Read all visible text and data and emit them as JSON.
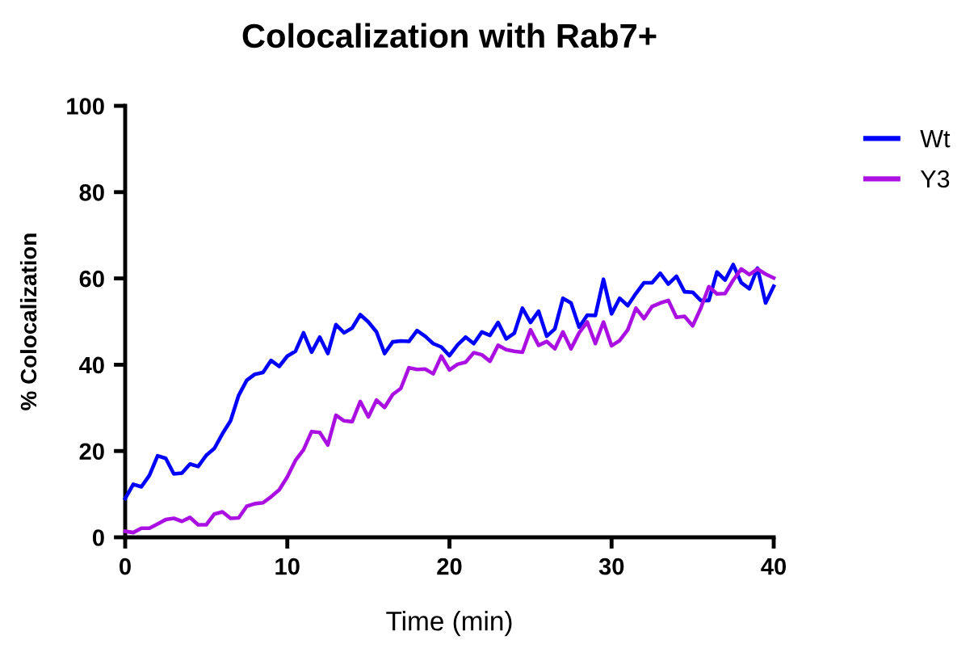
{
  "chart_data": {
    "type": "line",
    "title": "Colocalization with Rab7+",
    "xlabel": "Time (min)",
    "ylabel": "% Colocalization",
    "x": [
      0,
      0.5,
      1,
      1.5,
      2,
      2.5,
      3,
      3.5,
      4,
      4.5,
      5,
      5.5,
      6,
      6.5,
      7,
      7.5,
      8,
      8.5,
      9,
      9.5,
      10,
      10.5,
      11,
      11.5,
      12,
      12.5,
      13,
      13.5,
      14,
      14.5,
      15,
      15.5,
      16,
      16.5,
      17,
      17.5,
      18,
      18.5,
      19,
      19.5,
      20,
      20.5,
      21,
      21.5,
      22,
      22.5,
      23,
      23.5,
      24,
      24.5,
      25,
      25.5,
      26,
      26.5,
      27,
      27.5,
      28,
      28.5,
      29,
      29.5,
      30,
      30.5,
      31,
      31.5,
      32,
      32.5,
      33,
      33.5,
      34,
      34.5,
      35,
      35.5,
      36,
      36.5,
      37,
      37.5,
      38,
      38.5,
      39,
      39.5,
      40
    ],
    "series": [
      {
        "name": "Wt",
        "color": "#0000ff",
        "values": [
          9.0,
          12.3,
          11.7,
          14.4,
          18.9,
          18.3,
          14.7,
          14.9,
          17.0,
          16.4,
          19.0,
          20.6,
          24.0,
          27.0,
          32.9,
          36.4,
          37.8,
          38.2,
          41.0,
          39.6,
          42.0,
          43.1,
          47.4,
          42.9,
          46.4,
          42.6,
          49.3,
          47.4,
          48.5,
          51.6,
          49.9,
          47.6,
          42.6,
          45.3,
          45.5,
          45.4,
          47.9,
          46.6,
          44.9,
          44.1,
          42.1,
          44.6,
          46.4,
          44.9,
          47.6,
          46.8,
          49.8,
          46.0,
          47.3,
          53.1,
          49.8,
          52.4,
          46.6,
          48.3,
          55.4,
          54.3,
          48.7,
          51.5,
          51.4,
          59.8,
          51.8,
          55.4,
          53.7,
          56.5,
          59.0,
          59.0,
          61.2,
          58.7,
          60.5,
          56.9,
          56.8,
          54.9,
          54.9,
          61.5,
          59.6,
          63.2,
          59.0,
          57.6,
          62.4,
          54.3,
          58.2
        ]
      },
      {
        "name": "Y3",
        "color": "#ab10e2",
        "values": [
          1.4,
          1.1,
          2.1,
          2.1,
          3.1,
          4.1,
          4.4,
          3.7,
          4.6,
          2.9,
          2.9,
          5.4,
          5.9,
          4.4,
          4.5,
          7.2,
          7.8,
          8.0,
          9.4,
          11.0,
          14.0,
          17.8,
          20.3,
          24.5,
          24.3,
          21.4,
          28.3,
          27.0,
          26.8,
          31.5,
          27.9,
          31.8,
          30.1,
          33.1,
          34.5,
          39.3,
          38.9,
          39.0,
          37.9,
          42.0,
          38.8,
          40.1,
          40.6,
          42.8,
          42.3,
          40.8,
          44.5,
          43.5,
          43.1,
          42.9,
          48.1,
          44.5,
          45.4,
          43.7,
          47.6,
          43.7,
          47.4,
          49.9,
          44.9,
          49.9,
          44.4,
          45.6,
          48.1,
          53.1,
          50.7,
          53.5,
          54.3,
          54.9,
          51.0,
          51.2,
          49.0,
          53.1,
          58.1,
          56.4,
          56.5,
          59.6,
          62.2,
          60.9,
          62.2,
          61.0,
          60.1
        ]
      }
    ],
    "xlim": [
      0,
      40
    ],
    "xticks": [
      0,
      10,
      20,
      30,
      40
    ],
    "ylim": [
      0,
      100
    ],
    "yticks": [
      0,
      20,
      40,
      60,
      80,
      100
    ],
    "grid": false,
    "legend": "right",
    "line_style": "solid"
  }
}
